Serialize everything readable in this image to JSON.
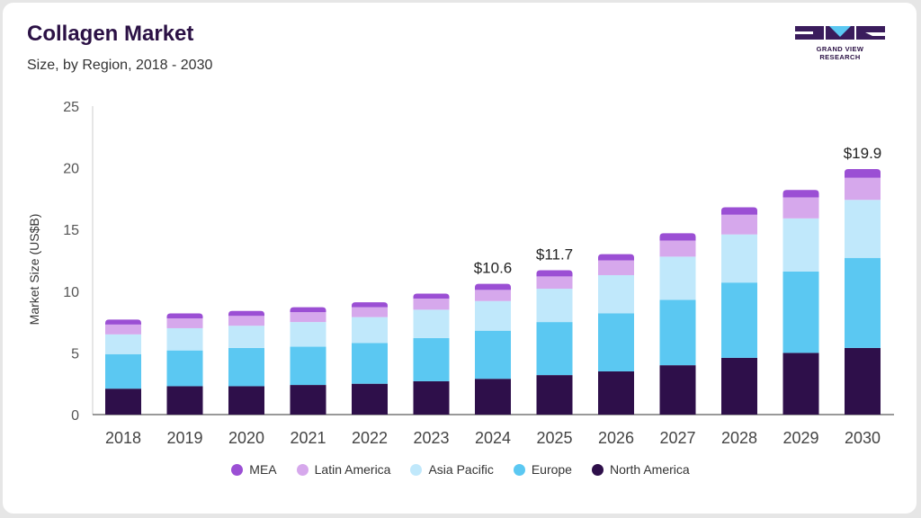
{
  "header": {
    "title": "Collagen Market",
    "subtitle": "Size, by Region, 2018 - 2030"
  },
  "logo": {
    "text": "GRAND VIEW RESEARCH",
    "colors": {
      "dark": "#3a1c5c",
      "accent": "#5bc8f2"
    }
  },
  "chart_data": {
    "type": "bar",
    "stacked": true,
    "title": "Collagen Market",
    "subtitle": "Size, by Region, 2018 - 2030",
    "xlabel": "",
    "ylabel": "Market Size (US$B)",
    "ylim": [
      0,
      25
    ],
    "yticks": [
      0,
      5,
      10,
      15,
      20,
      25
    ],
    "grid": false,
    "legend_position": "bottom",
    "categories": [
      "2018",
      "2019",
      "2020",
      "2021",
      "2022",
      "2023",
      "2024",
      "2025",
      "2026",
      "2027",
      "2028",
      "2029",
      "2030"
    ],
    "series": [
      {
        "name": "North America",
        "color": "#2e0f4a",
        "values": [
          2.1,
          2.3,
          2.3,
          2.4,
          2.5,
          2.7,
          2.9,
          3.2,
          3.5,
          4.0,
          4.6,
          5.0,
          5.4
        ]
      },
      {
        "name": "Europe",
        "color": "#5bc8f2",
        "values": [
          2.8,
          2.9,
          3.1,
          3.1,
          3.3,
          3.5,
          3.9,
          4.3,
          4.7,
          5.3,
          6.1,
          6.6,
          7.3
        ]
      },
      {
        "name": "Asia Pacific",
        "color": "#c0e8fb",
        "values": [
          1.6,
          1.8,
          1.8,
          2.0,
          2.1,
          2.3,
          2.4,
          2.7,
          3.1,
          3.5,
          3.9,
          4.3,
          4.7
        ]
      },
      {
        "name": "Latin America",
        "color": "#d6a8ec",
        "values": [
          0.8,
          0.8,
          0.8,
          0.8,
          0.8,
          0.9,
          0.9,
          1.0,
          1.2,
          1.3,
          1.6,
          1.7,
          1.8
        ]
      },
      {
        "name": "MEA",
        "color": "#9b4fd4",
        "values": [
          0.4,
          0.4,
          0.4,
          0.4,
          0.4,
          0.4,
          0.5,
          0.5,
          0.5,
          0.6,
          0.6,
          0.6,
          0.7
        ]
      }
    ],
    "annotations": [
      {
        "category": "2024",
        "label": "$10.6"
      },
      {
        "category": "2025",
        "label": "$11.7"
      },
      {
        "category": "2030",
        "label": "$19.9"
      }
    ]
  }
}
